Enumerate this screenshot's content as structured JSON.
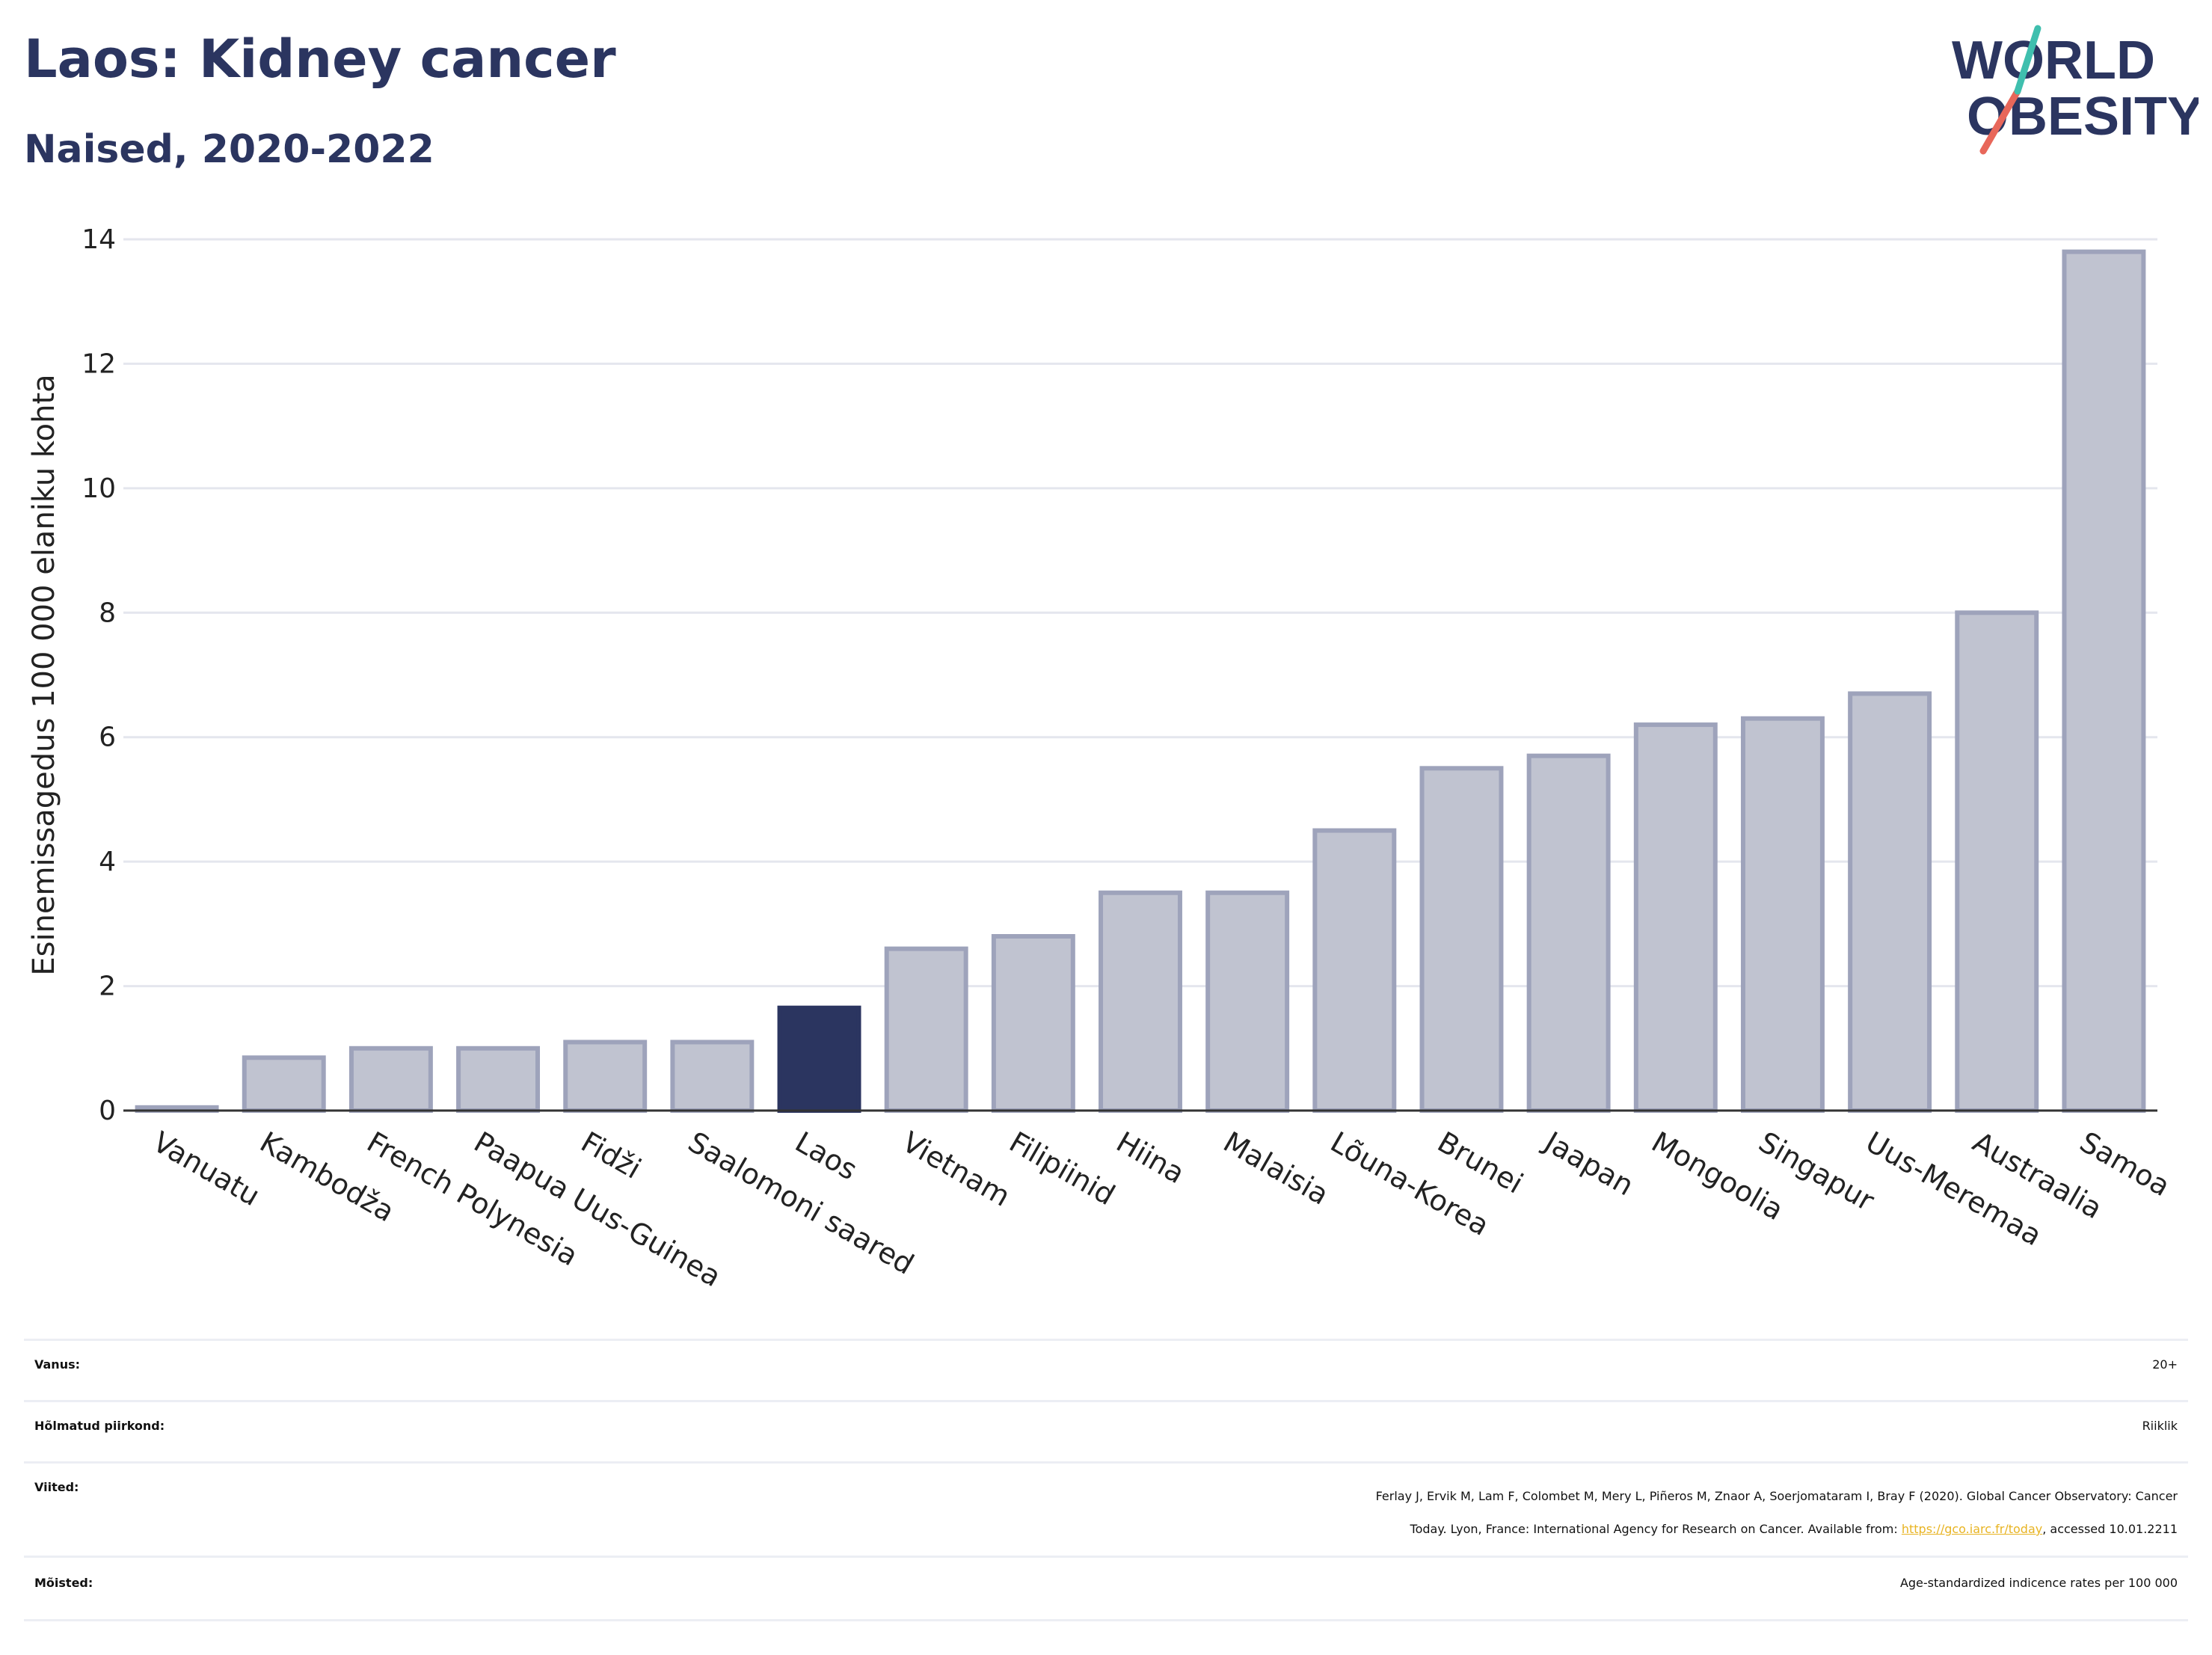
{
  "header": {
    "title": "Laos: Kidney cancer",
    "subtitle": "Naised, 2020-2022"
  },
  "logo": {
    "line1": "WORLD",
    "line2": "OBESITY",
    "text_color": "#2b3560",
    "slash_colors": [
      "#e8675a",
      "#3fbfae"
    ]
  },
  "chart_data": {
    "type": "bar",
    "title": "Laos: Kidney cancer",
    "subtitle": "Naised, 2020-2022",
    "xlabel": "",
    "ylabel": "Esinemissagedus 100 000 elaniku kohta",
    "ylim": [
      0,
      14
    ],
    "yticks": [
      0,
      2,
      4,
      6,
      8,
      10,
      12,
      14
    ],
    "grid": true,
    "categories": [
      "Vanuatu",
      "Kambodža",
      "French Polynesia",
      "Paapua Uus-Guinea",
      "Fidži",
      "Saalomoni saared",
      "Laos",
      "Vietnam",
      "Filipiinid",
      "Hiina",
      "Malaisia",
      "Lõuna-Korea",
      "Brunei",
      "Jaapan",
      "Mongoolia",
      "Singapur",
      "Uus-Meremaa",
      "Austraalia",
      "Samoa"
    ],
    "values": [
      0.05,
      0.85,
      1.0,
      1.0,
      1.1,
      1.1,
      1.65,
      2.6,
      2.8,
      3.5,
      3.5,
      4.5,
      5.5,
      5.7,
      6.2,
      6.3,
      6.7,
      8.0,
      13.8
    ],
    "highlight": "Laos",
    "colors": {
      "bar": "#c0c3d0",
      "bar_border": "#9ea3bb",
      "highlight": "#2b3560",
      "grid": "#e4e6ee",
      "axis": "#333333"
    }
  },
  "meta": {
    "age_label": "Vanus:",
    "age_value": "20+",
    "region_label": "Hõlmatud piirkond:",
    "region_value": "Riiklik",
    "refs_label": "Viited:",
    "refs_line1": "Ferlay J, Ervik M, Lam F, Colombet M, Mery L, Piñeros M, Znaor A, Soerjomataram I, Bray F (2020). Global Cancer Observatory: Cancer",
    "refs_line2_pre": "Today. Lyon, France: International Agency for Research on Cancer. Available from: ",
    "refs_link": "https://gco.iarc.fr/today",
    "refs_line2_post": ", accessed 10.01.2211",
    "defs_label": "Mõisted:",
    "defs_value": "Age-standardized indicence rates per 100 000"
  }
}
